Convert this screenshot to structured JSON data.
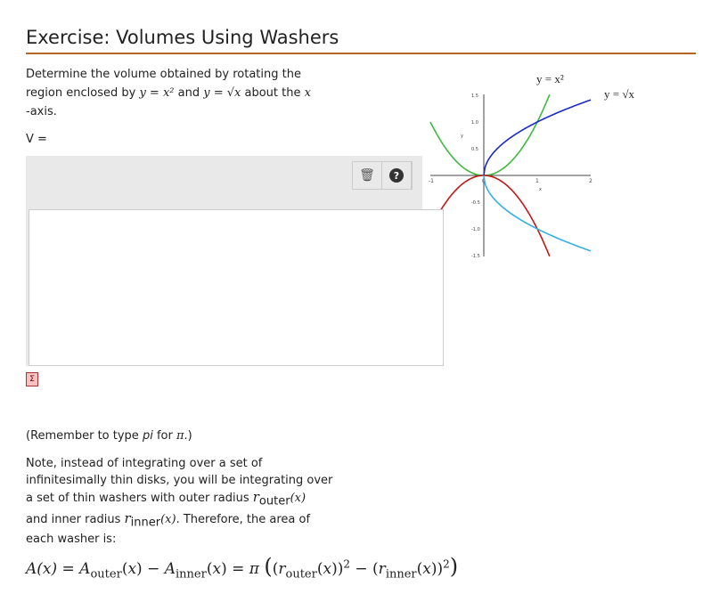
{
  "title": "Exercise: Volumes Using Washers",
  "prompt": {
    "line1": "Determine the volume obtained by rotating the",
    "line2_a": "region enclosed by ",
    "eq1": "y = x²",
    "line2_b": " and ",
    "eq2": "y = √x",
    "line2_c": " about the ",
    "var_x": "x",
    "line3": "-axis."
  },
  "answer_label": "V =",
  "toolbar": {
    "delete_icon": "trash-icon",
    "help_icon": "question-icon",
    "help_glyph": "?"
  },
  "answer_value": "",
  "reminder": {
    "a": "(Remember to type ",
    "pi": "pi",
    "b": " for ",
    "sym": "π",
    "c": ".)"
  },
  "note": {
    "l1": "Note, instead of integrating over a set of",
    "l2": "infinitesimally thin disks, you will be integrating over",
    "l3": "a set of thin washers with outer radius ",
    "r_outer": "r",
    "outer": "outer",
    "fx": "(x)",
    "l4a": "and inner radius ",
    "inner": "inner",
    "l4b": ". Therefore, the area of",
    "l5": "each washer is:"
  },
  "formula": "A(x) = A",
  "graph": {
    "labels": {
      "parabola": "y = x²",
      "root": "y = √x",
      "ylabel": "y",
      "xlabel": "x"
    },
    "x_ticks": [
      "-1",
      "0",
      "1",
      "2"
    ],
    "y_ticks": [
      "1.5",
      "1.0",
      "0.5",
      "-0.5",
      "-1.0",
      "-1.5"
    ],
    "curves": [
      {
        "f": "x^2",
        "color": "#3dba3d"
      },
      {
        "f": "-x^2",
        "color": "#c01818"
      },
      {
        "f": "sqrt(x)",
        "color": "#1a2ad0"
      },
      {
        "f": "-sqrt(x)",
        "color": "#35b0e0"
      }
    ]
  }
}
